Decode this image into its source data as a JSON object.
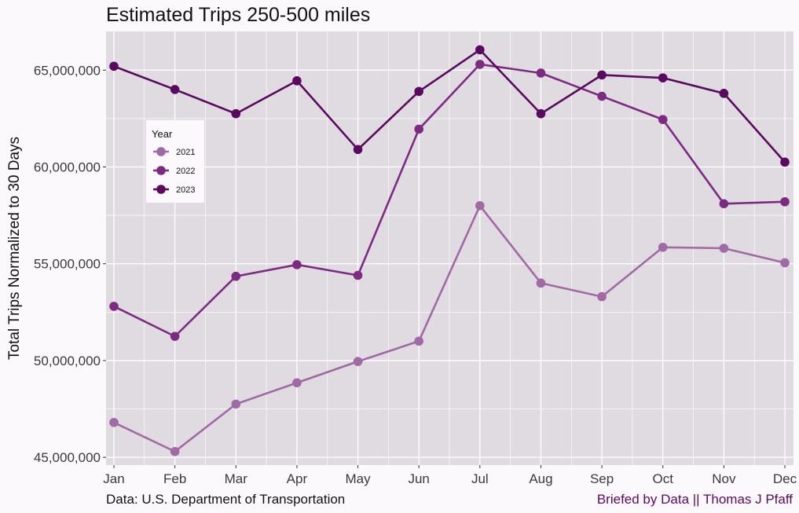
{
  "colors": {
    "background": "#fcf9fc",
    "panel": "#e0dbe1",
    "grid": "#ffffff",
    "credit": "#5a0a5e"
  },
  "chart_data": {
    "type": "line",
    "title": "Estimated Trips 250-500 miles",
    "xlabel": "",
    "ylabel": "Total Trips Normalized to 30 Days",
    "categories": [
      "Jan",
      "Feb",
      "Mar",
      "Apr",
      "May",
      "Jun",
      "Jul",
      "Aug",
      "Sep",
      "Oct",
      "Nov",
      "Dec"
    ],
    "yticks": [
      45000000,
      50000000,
      55000000,
      60000000,
      65000000
    ],
    "ytick_labels": [
      "45,000,000",
      "50,000,000",
      "55,000,000",
      "60,000,000",
      "65,000,000"
    ],
    "ylim": [
      44600000,
      67000000
    ],
    "grid": true,
    "legend": {
      "title": "Year",
      "placement": "upper-left inside"
    },
    "series": [
      {
        "name": "2021",
        "color": "#a06aa4",
        "values": [
          46800000,
          45300000,
          47750000,
          48850000,
          49950000,
          51000000,
          58000000,
          54000000,
          53300000,
          55850000,
          55800000,
          55050000
        ]
      },
      {
        "name": "2022",
        "color": "#7d2a82",
        "values": [
          52800000,
          51250000,
          54350000,
          54950000,
          54400000,
          61950000,
          65300000,
          64850000,
          63650000,
          62450000,
          58100000,
          58200000
        ]
      },
      {
        "name": "2023",
        "color": "#5a0a5e",
        "values": [
          65200000,
          64000000,
          62750000,
          64450000,
          60900000,
          63900000,
          66050000,
          62750000,
          64750000,
          64600000,
          63800000,
          60250000
        ]
      }
    ]
  },
  "captions": {
    "source": "Data: U.S. Department of Transportation",
    "credit": "Briefed by Data || Thomas J Pfaff"
  }
}
